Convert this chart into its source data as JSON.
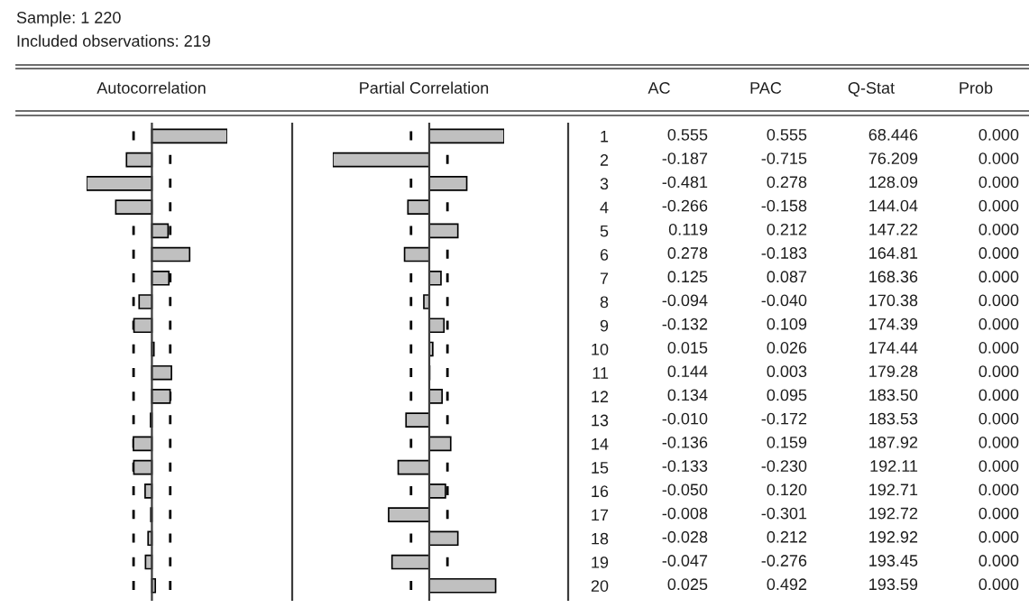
{
  "chart_data": [
    {
      "type": "bar",
      "orientation": "horizontal",
      "title": "Autocorrelation",
      "categories": [
        "1",
        "2",
        "3",
        "4",
        "5",
        "6",
        "7",
        "8",
        "9",
        "10",
        "11",
        "12",
        "13",
        "14",
        "15",
        "16",
        "17",
        "18",
        "19",
        "20"
      ],
      "values": [
        0.555,
        -0.187,
        -0.481,
        -0.266,
        0.119,
        0.278,
        0.125,
        -0.094,
        -0.132,
        0.015,
        0.144,
        0.134,
        -0.01,
        -0.136,
        -0.133,
        -0.05,
        -0.008,
        -0.028,
        -0.047,
        0.025
      ],
      "value_labels": [
        "0.555",
        "-0.187",
        "-0.481",
        "-0.266",
        "0.119",
        "0.278",
        "0.125",
        "-0.094",
        "-0.132",
        "0.015",
        "0.144",
        "0.134",
        "-0.010",
        "-0.136",
        "-0.133",
        "-0.050",
        "-0.008",
        "-0.028",
        "-0.047",
        "0.025"
      ],
      "color": "#c0c0c0",
      "tick_labels": false,
      "ref_lines": [
        {
          "axis": "x",
          "value": -0.135,
          "color": "#000000",
          "line_style": "dashed"
        },
        {
          "axis": "x",
          "value": 0.135,
          "color": "#000000",
          "line_style": "dashed"
        }
      ]
    },
    {
      "type": "bar",
      "orientation": "horizontal",
      "title": "Partial Correlation",
      "categories": [
        "1",
        "2",
        "3",
        "4",
        "5",
        "6",
        "7",
        "8",
        "9",
        "10",
        "11",
        "12",
        "13",
        "14",
        "15",
        "16",
        "17",
        "18",
        "19",
        "20"
      ],
      "values": [
        0.555,
        -0.715,
        0.278,
        -0.158,
        0.212,
        -0.183,
        0.087,
        -0.04,
        0.109,
        0.026,
        0.003,
        0.095,
        -0.172,
        0.159,
        -0.23,
        0.12,
        -0.301,
        0.212,
        -0.276,
        0.492
      ],
      "value_labels": [
        "0.555",
        "-0.715",
        "0.278",
        "-0.158",
        "0.212",
        "-0.183",
        "0.087",
        "-0.040",
        "0.109",
        "0.026",
        "0.003",
        "0.095",
        "-0.172",
        "0.159",
        "-0.230",
        "0.120",
        "-0.301",
        "0.212",
        "-0.276",
        "0.492"
      ],
      "color": "#c0c0c0",
      "tick_labels": "y",
      "ref_lines": [
        {
          "axis": "x",
          "value": -0.135,
          "color": "#000000",
          "line_style": "dashed"
        },
        {
          "axis": "x",
          "value": 0.135,
          "color": "#000000",
          "line_style": "dashed"
        }
      ]
    },
    {
      "type": "other",
      "title": "Sample: 1 220",
      "subtitle": "Included observations: 219",
      "annotations": [
        "AC",
        "PAC",
        "Q-Stat",
        "Prob",
        "68.446",
        "0.000",
        "76.209",
        "0.000",
        "128.09",
        "0.000",
        "144.04",
        "0.000",
        "147.22",
        "0.000",
        "164.81",
        "0.000",
        "168.36",
        "0.000",
        "170.38",
        "0.000",
        "174.39",
        "0.000",
        "174.44",
        "0.000",
        "179.28",
        "0.000",
        "183.50",
        "0.000",
        "183.53",
        "0.000",
        "187.92",
        "0.000",
        "192.11",
        "0.000",
        "192.71",
        "0.000",
        "192.72",
        "0.000",
        "192.92",
        "0.000",
        "193.45",
        "0.000",
        "193.59",
        "0.000"
      ]
    }
  ]
}
